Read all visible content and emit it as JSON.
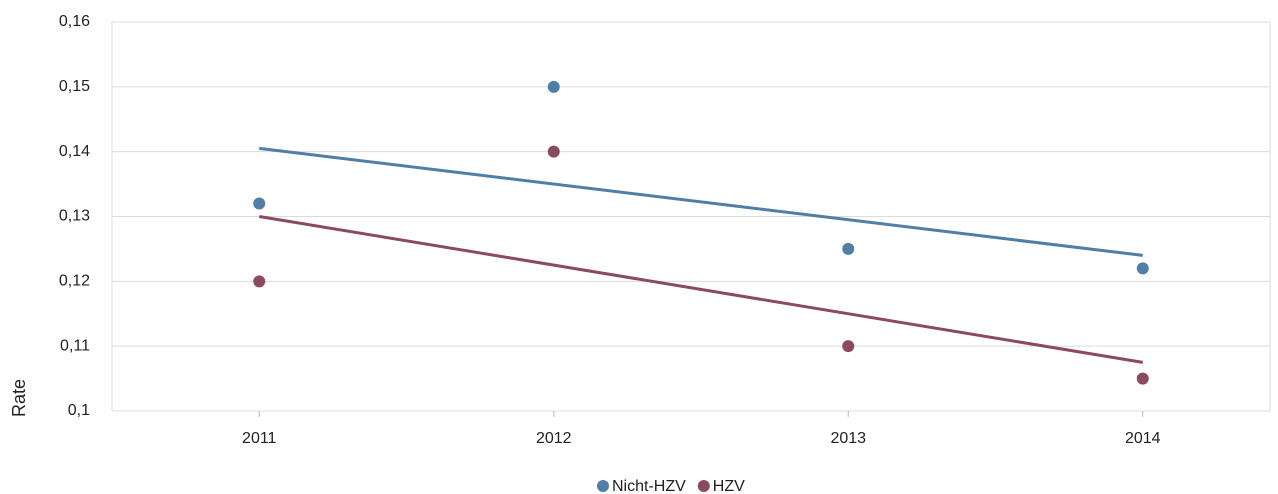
{
  "chart_data": {
    "type": "scatter",
    "y_label": "Rate",
    "categories": [
      "2011",
      "2012",
      "2013",
      "2014"
    ],
    "series": [
      {
        "name": "Nicht-HZV",
        "color": "#4f7fa6",
        "values": [
          0.132,
          0.15,
          0.125,
          0.122
        ]
      },
      {
        "name": "HZV",
        "color": "#8b4a60",
        "values": [
          0.12,
          0.14,
          0.11,
          0.105
        ]
      }
    ],
    "trendline": "linear",
    "ylim": [
      0.1,
      0.16
    ],
    "yticks": [
      {
        "value": 0.1,
        "label": "0,1"
      },
      {
        "value": 0.11,
        "label": "0,11"
      },
      {
        "value": 0.12,
        "label": "0,12"
      },
      {
        "value": 0.13,
        "label": "0,13"
      },
      {
        "value": 0.14,
        "label": "0,14"
      },
      {
        "value": 0.15,
        "label": "0,15"
      },
      {
        "value": 0.16,
        "label": "0,16"
      }
    ],
    "grid": true,
    "legend": "bottom"
  }
}
